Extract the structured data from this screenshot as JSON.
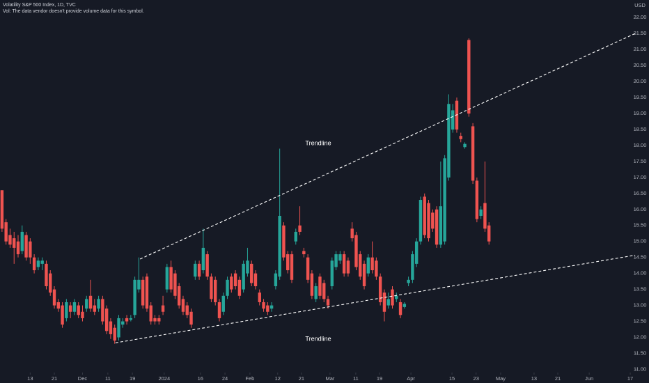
{
  "chart_data": {
    "type": "candlestick",
    "title": "Volatility S&P 500 Index, 1D, TVC",
    "subtitle": "Vol: The data vendor doesn't provide volume data for this symbol.",
    "y_axis_label": "USD",
    "up_color": "#26a69a",
    "down_color": "#ef5350",
    "background": "#161a25",
    "open": [
      16.6,
      15.6,
      15.2,
      15.1,
      15.0,
      14.7,
      15.2,
      15.0,
      14.5,
      14.2,
      14.3,
      14.3,
      14.0,
      13.5,
      13.1,
      13.0,
      12.6,
      13.0,
      12.8,
      13.0,
      12.8,
      12.9,
      13.3,
      13.0,
      12.9,
      13.2,
      12.9,
      12.5,
      12.3,
      12.0,
      12.4,
      12.6,
      12.55,
      12.7,
      13.5,
      13.8,
      13.9,
      13.0,
      12.6,
      12.6,
      13.0,
      13.5,
      14.2,
      14.0,
      13.6,
      13.2,
      13.0,
      12.8,
      13.9,
      14.3,
      14.1,
      14.6,
      13.9,
      13.8,
      13.1,
      12.8,
      13.3,
      13.9,
      14.0,
      13.8,
      13.5,
      14.0,
      14.3,
      14.0,
      13.4,
      13.1,
      13.0,
      12.9,
      13.6,
      13.9,
      15.5,
      14.6,
      14.6,
      15.0,
      15.5,
      14.7,
      14.5,
      14.0,
      13.2,
      13.9,
      13.7,
      13.2,
      13.6,
      14.2,
      14.4,
      14.6,
      14.4,
      15.4,
      15.2,
      14.6,
      14.3,
      14.0,
      14.5,
      14.4,
      13.9,
      13.4,
      13.0,
      13.5,
      13.2,
      13.1,
      12.95,
      13.7,
      13.8,
      14.3,
      15.0,
      16.4,
      16.2,
      15.9,
      16.0,
      14.9,
      15.0,
      17.0,
      18.5,
      19.4,
      18.3,
      17.95,
      21.3,
      18.6,
      16.9,
      15.8,
      16.2,
      15.5
    ],
    "high": [
      16.6,
      15.7,
      15.4,
      15.3,
      15.2,
      15.5,
      15.3,
      15.1,
      14.6,
      14.5,
      14.5,
      14.4,
      14.1,
      13.6,
      13.2,
      13.1,
      13.2,
      13.1,
      13.2,
      13.1,
      13.0,
      13.3,
      13.8,
      13.2,
      13.3,
      13.3,
      13.0,
      12.6,
      12.4,
      12.7,
      12.6,
      12.7,
      12.7,
      13.9,
      14.5,
      13.9,
      14.0,
      13.1,
      12.7,
      12.7,
      13.3,
      14.3,
      14.4,
      14.1,
      13.7,
      13.3,
      13.1,
      12.9,
      14.4,
      14.4,
      15.4,
      14.7,
      14.0,
      13.9,
      13.2,
      13.4,
      13.9,
      14.0,
      14.1,
      13.9,
      14.4,
      14.8,
      14.4,
      14.1,
      13.5,
      13.2,
      13.1,
      13.1,
      14.1,
      17.9,
      15.6,
      14.7,
      14.7,
      15.4,
      16.1,
      14.8,
      14.6,
      14.1,
      13.7,
      14.0,
      13.8,
      13.3,
      14.5,
      14.7,
      14.7,
      14.7,
      14.5,
      15.6,
      15.3,
      14.7,
      14.4,
      14.6,
      15.0,
      14.5,
      14.0,
      13.5,
      13.4,
      13.6,
      13.4,
      13.2,
      13.1,
      13.9,
      14.7,
      15.1,
      16.4,
      16.5,
      16.3,
      16.0,
      16.1,
      17.5,
      17.7,
      19.6,
      19.3,
      19.5,
      18.4,
      18.1,
      21.35,
      18.7,
      17.0,
      16.1,
      17.5,
      15.6
    ],
    "low": [
      15.3,
      14.9,
      14.8,
      14.3,
      14.5,
      14.6,
      14.4,
      14.3,
      14.0,
      14.1,
      14.1,
      13.5,
      13.3,
      12.9,
      12.8,
      12.3,
      12.5,
      12.6,
      12.7,
      12.6,
      12.5,
      12.8,
      12.8,
      12.7,
      12.8,
      12.4,
      12.1,
      11.95,
      11.8,
      11.9,
      12.3,
      12.4,
      12.5,
      12.6,
      13.4,
      12.9,
      12.8,
      12.4,
      12.4,
      12.4,
      12.7,
      13.4,
      13.4,
      13.2,
      12.9,
      12.7,
      12.6,
      12.3,
      13.8,
      13.8,
      14.0,
      13.8,
      13.1,
      13.0,
      12.5,
      12.7,
      13.2,
      13.4,
      13.5,
      13.2,
      13.4,
      13.9,
      13.6,
      13.5,
      13.0,
      12.8,
      12.7,
      12.8,
      13.5,
      13.8,
      14.4,
      14.0,
      13.7,
      14.9,
      15.2,
      14.5,
      13.7,
      13.2,
      13.1,
      13.2,
      13.1,
      12.9,
      13.5,
      14.1,
      14.3,
      13.9,
      13.9,
      15.0,
      14.1,
      13.8,
      13.5,
      13.9,
      14.0,
      13.8,
      13.0,
      12.5,
      12.9,
      12.9,
      13.1,
      12.6,
      12.9,
      13.6,
      13.7,
      14.2,
      14.9,
      15.1,
      15.0,
      15.3,
      14.8,
      14.8,
      14.9,
      16.9,
      18.4,
      18.4,
      18.1,
      17.9,
      18.9,
      16.8,
      15.6,
      15.7,
      15.3,
      14.9
    ],
    "close": [
      15.4,
      15.0,
      14.9,
      14.8,
      14.6,
      15.3,
      14.5,
      14.5,
      14.1,
      14.4,
      14.4,
      13.6,
      13.4,
      13.0,
      12.9,
      12.4,
      13.1,
      12.8,
      13.1,
      12.7,
      12.6,
      13.2,
      12.9,
      12.8,
      13.2,
      12.5,
      12.2,
      12.1,
      11.9,
      12.6,
      12.5,
      12.5,
      12.6,
      13.8,
      13.8,
      13.0,
      12.9,
      12.5,
      12.5,
      12.5,
      12.8,
      14.2,
      13.5,
      13.3,
      13.0,
      12.8,
      12.7,
      12.4,
      14.3,
      13.9,
      14.8,
      13.9,
      13.2,
      13.1,
      12.6,
      13.3,
      13.8,
      13.5,
      13.6,
      13.3,
      14.3,
      14.4,
      13.7,
      13.6,
      13.1,
      12.9,
      12.8,
      13.0,
      14.0,
      15.8,
      14.5,
      14.1,
      13.8,
      15.3,
      15.3,
      14.6,
      13.8,
      13.3,
      13.6,
      13.3,
      13.2,
      13.0,
      14.4,
      14.6,
      14.6,
      14.0,
      14.0,
      15.1,
      14.2,
      13.9,
      13.6,
      14.5,
      14.1,
      13.9,
      13.1,
      12.8,
      13.2,
      13.0,
      13.3,
      12.7,
      13.05,
      13.8,
      14.6,
      15.0,
      16.3,
      15.2,
      15.1,
      15.4,
      14.9,
      16.1,
      17.6,
      19.3,
      19.1,
      18.5,
      18.2,
      18.05,
      19.0,
      16.9,
      15.7,
      16.0,
      15.4,
      15.0
    ],
    "trendlines": [
      {
        "name": "Trendline",
        "x": [
          34.3,
          157.3
        ],
        "y": [
          14.45,
          21.5
        ],
        "color": "#ffffff"
      },
      {
        "name": "Trendline",
        "x": [
          28.2,
          157.3
        ],
        "y": [
          11.83,
          14.57
        ],
        "color": "#ffffff"
      }
    ],
    "xlim": [
      -0.5,
      157.3
    ],
    "ylim": [
      10.9,
      22.55
    ],
    "xticks": [
      {
        "value": 7,
        "label": "13"
      },
      {
        "value": 13,
        "label": "21"
      },
      {
        "value": 20,
        "label": "Dec"
      },
      {
        "value": 26.3,
        "label": "11"
      },
      {
        "value": 32.4,
        "label": "19"
      },
      {
        "value": 40.3,
        "label": "2024"
      },
      {
        "value": 49.3,
        "label": "16"
      },
      {
        "value": 55.4,
        "label": "24"
      },
      {
        "value": 61.6,
        "label": "Feb"
      },
      {
        "value": 68.5,
        "label": "12"
      },
      {
        "value": 74.4,
        "label": "21"
      },
      {
        "value": 81.5,
        "label": "Mar"
      },
      {
        "value": 87.9,
        "label": "11"
      },
      {
        "value": 93.8,
        "label": "19"
      },
      {
        "value": 101.6,
        "label": "Apr"
      },
      {
        "value": 111.8,
        "label": "15"
      },
      {
        "value": 117.8,
        "label": "23"
      },
      {
        "value": 123.9,
        "label": "May"
      },
      {
        "value": 132.2,
        "label": "13"
      },
      {
        "value": 138.1,
        "label": "21"
      },
      {
        "value": 145.9,
        "label": "Jun"
      },
      {
        "value": 156.1,
        "label": "17"
      }
    ],
    "yticks": [
      {
        "value": 11,
        "label": "11.00"
      },
      {
        "value": 11.5,
        "label": "11.50"
      },
      {
        "value": 12,
        "label": "12.00"
      },
      {
        "value": 12.5,
        "label": "12.50"
      },
      {
        "value": 13,
        "label": "13.00"
      },
      {
        "value": 13.5,
        "label": "13.50"
      },
      {
        "value": 14,
        "label": "14.00"
      },
      {
        "value": 14.5,
        "label": "14.50"
      },
      {
        "value": 15,
        "label": "15.00"
      },
      {
        "value": 15.5,
        "label": "15.50"
      },
      {
        "value": 16,
        "label": "16.00"
      },
      {
        "value": 16.5,
        "label": "16.50"
      },
      {
        "value": 17,
        "label": "17.00"
      },
      {
        "value": 17.5,
        "label": "17.50"
      },
      {
        "value": 18,
        "label": "18.00"
      },
      {
        "value": 18.5,
        "label": "18.50"
      },
      {
        "value": 19,
        "label": "19.00"
      },
      {
        "value": 19.5,
        "label": "19.50"
      },
      {
        "value": 20,
        "label": "20.00"
      },
      {
        "value": 20.5,
        "label": "20.50"
      },
      {
        "value": 21,
        "label": "21.00"
      },
      {
        "value": 21.5,
        "label": "21.50"
      },
      {
        "value": 22,
        "label": "22.00"
      }
    ]
  }
}
